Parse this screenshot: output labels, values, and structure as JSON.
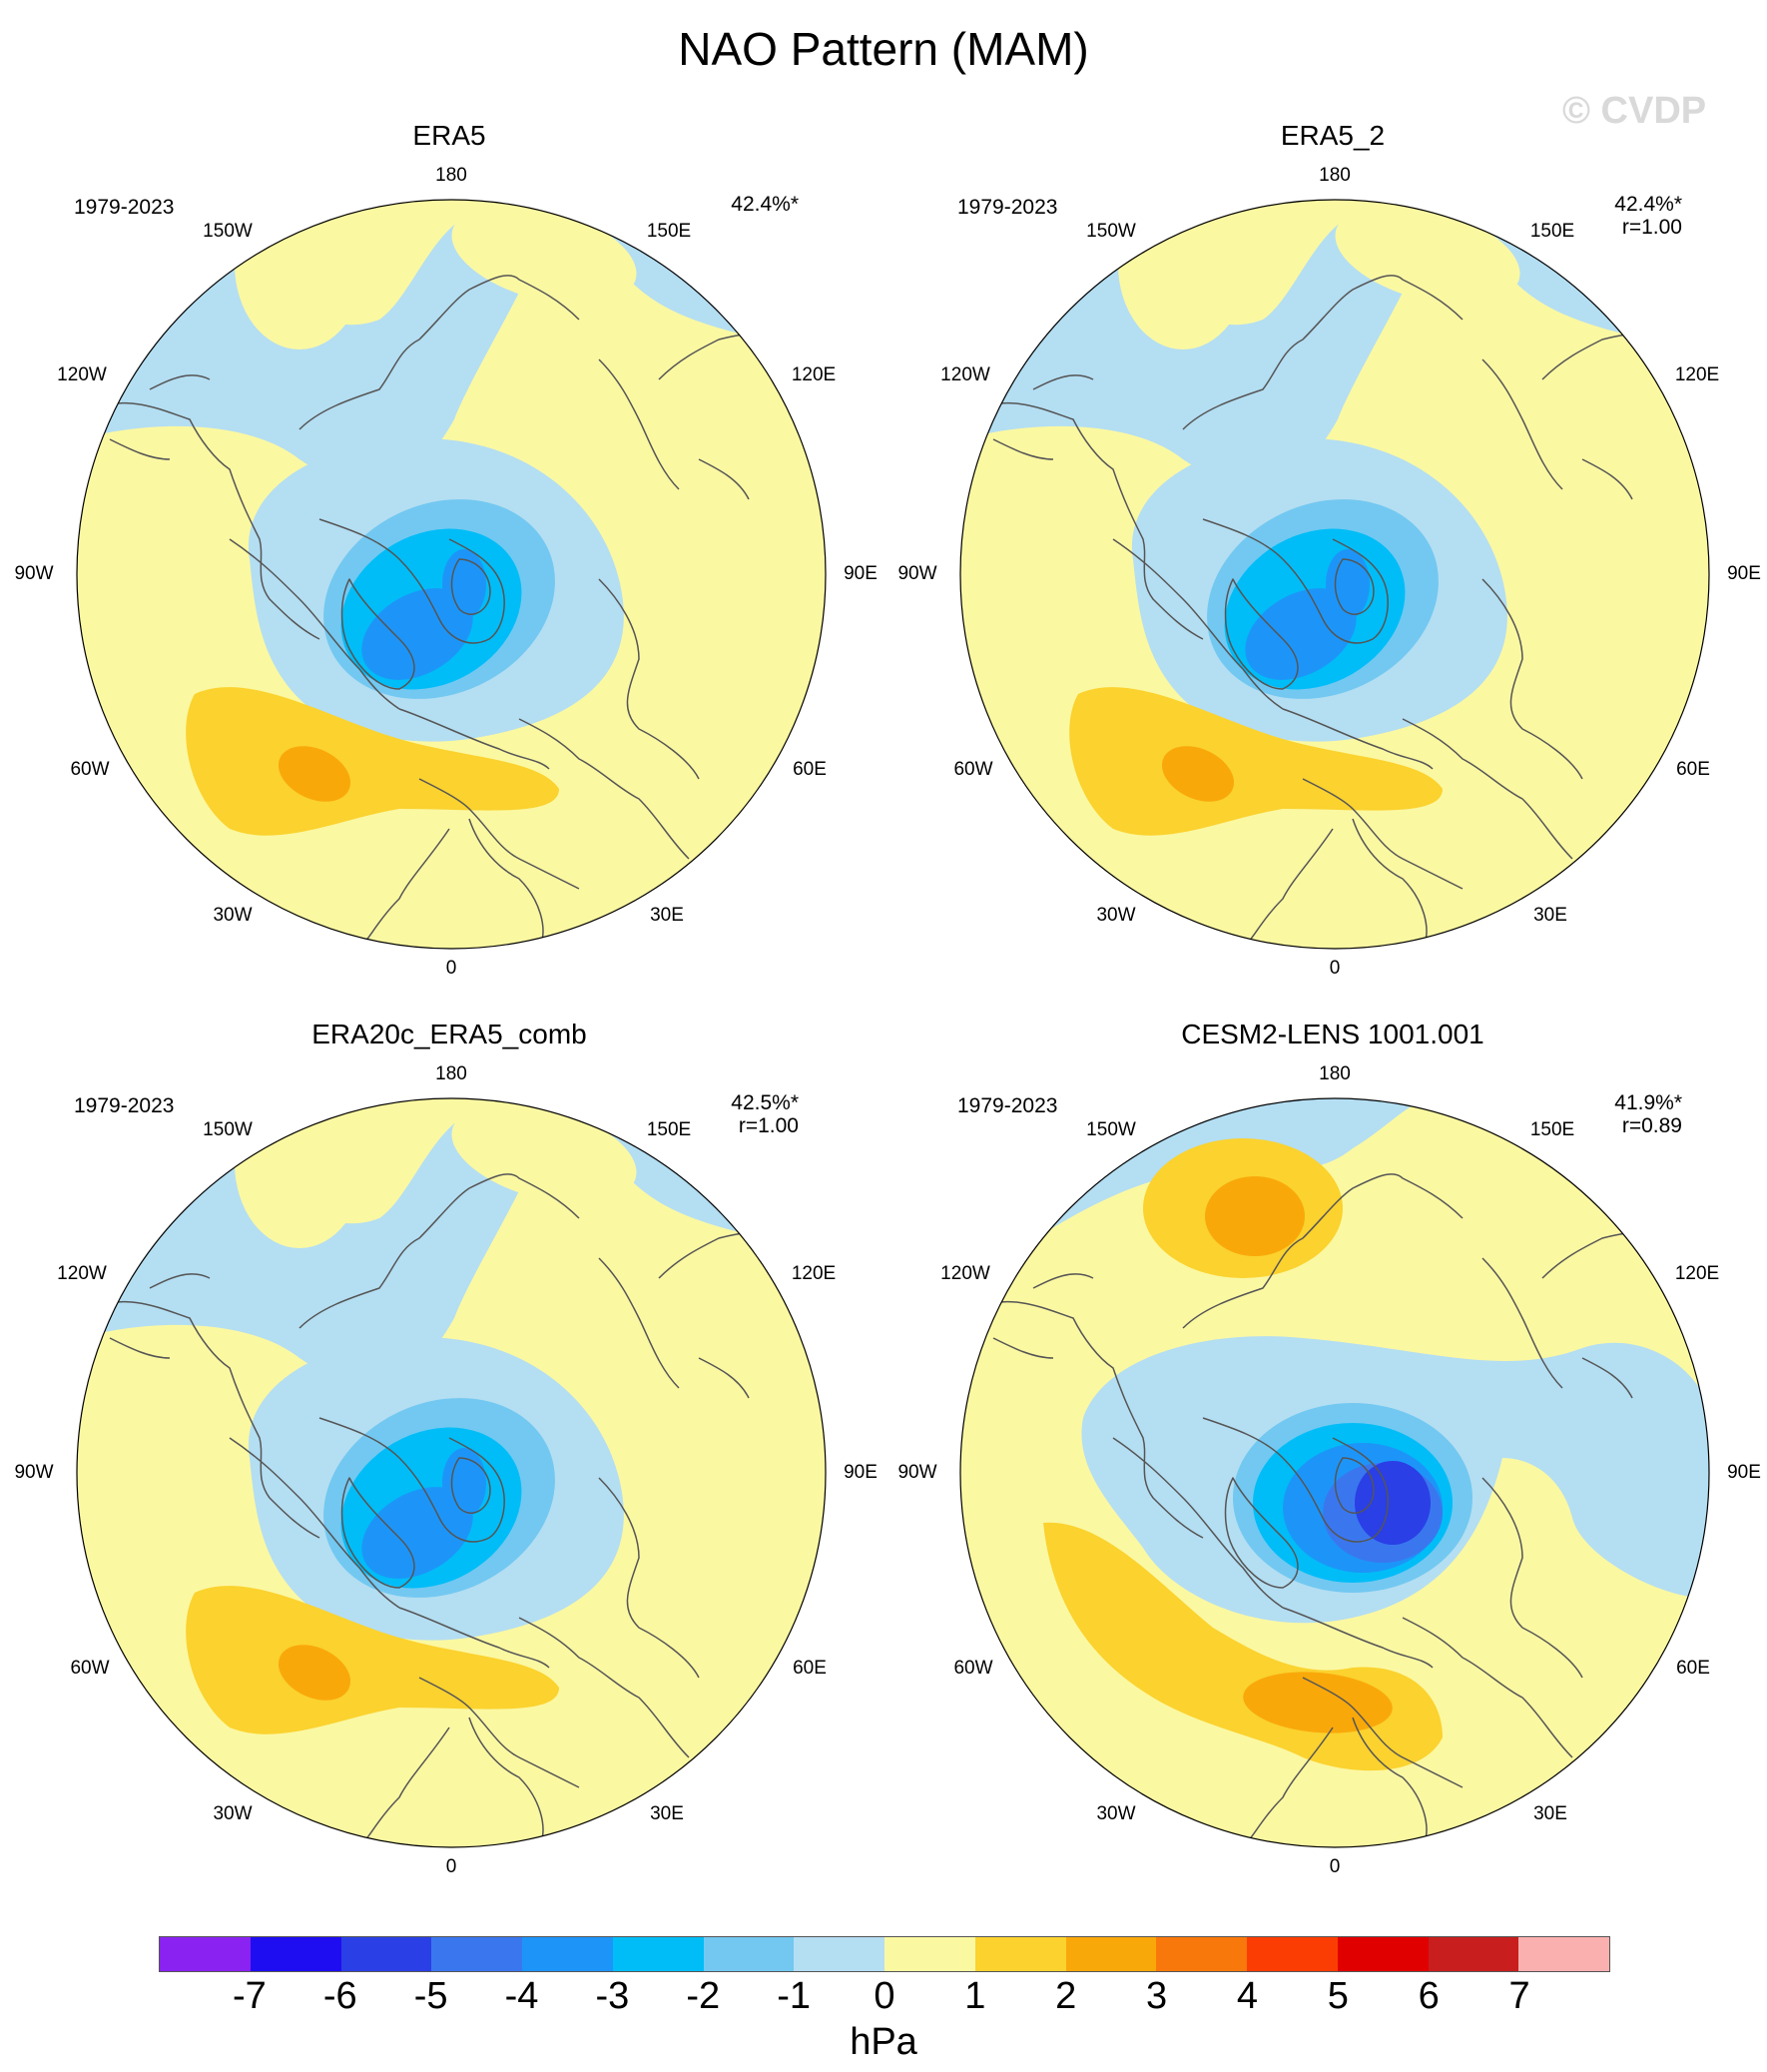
{
  "title": "NAO Pattern (MAM)",
  "watermark": "© CVDP",
  "longitude_labels": [
    "180",
    "150E",
    "120E",
    "90E",
    "60E",
    "30E",
    "0",
    "30W",
    "60W",
    "90W",
    "120W",
    "150W"
  ],
  "panels": [
    {
      "title": "ERA5",
      "years": "1979-2023",
      "pct": "42.4%*",
      "r": ""
    },
    {
      "title": "ERA5_2",
      "years": "1979-2023",
      "pct": "42.4%*",
      "r": "r=1.00"
    },
    {
      "title": "ERA20c_ERA5_comb",
      "years": "1979-2023",
      "pct": "42.5%*",
      "r": "r=1.00"
    },
    {
      "title": "CESM2-LENS 1001.001",
      "years": "1979-2023",
      "pct": "41.9%*",
      "r": "r=0.89"
    }
  ],
  "colorbar": {
    "units": "hPa",
    "ticks": [
      "-7",
      "-6",
      "-5",
      "-4",
      "-3",
      "-2",
      "-1",
      "0",
      "1",
      "2",
      "3",
      "4",
      "5",
      "6",
      "7"
    ],
    "colors": [
      "#8a22f2",
      "#1f0df2",
      "#2a3fe6",
      "#3a77ef",
      "#1d95f8",
      "#00bdf7",
      "#72c8f1",
      "#b4def2",
      "#fbf8a2",
      "#fbd22e",
      "#f9a80a",
      "#f9780b",
      "#fb3d04",
      "#e10000",
      "#c81e1e",
      "#fbb0b0"
    ]
  },
  "map_colors": {
    "land_outline": "#555555",
    "level_neg1": "#b4def2",
    "level_neg2": "#72c8f1",
    "level_neg3": "#00bdf7",
    "level_neg4": "#1d95f8",
    "level_neg5": "#3a77ef",
    "level_neg6": "#2a3fe6",
    "level_0": "#fbf8a2",
    "level_1": "#fbd22e",
    "level_2": "#f9a80a"
  }
}
